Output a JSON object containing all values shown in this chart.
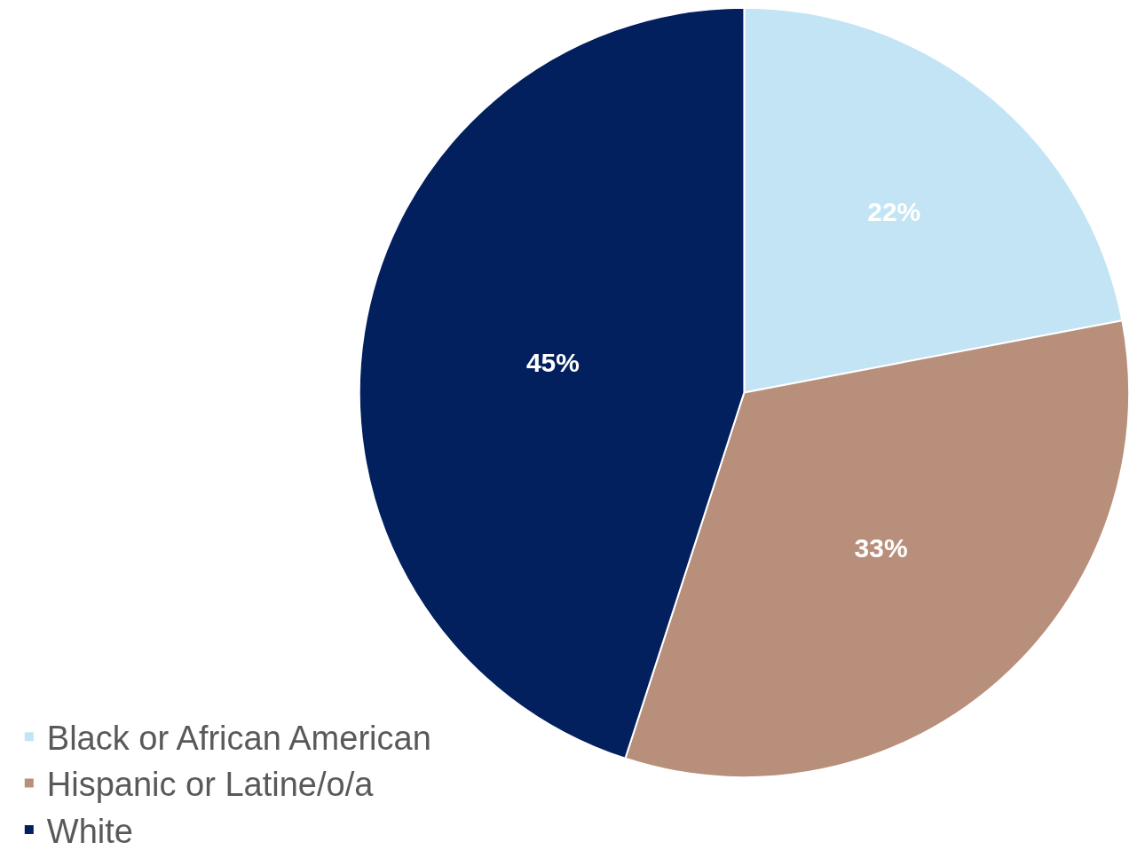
{
  "chart_data": {
    "type": "pie",
    "categories": [
      "Black or African American",
      "Hispanic or Latine/o/a",
      "White"
    ],
    "values": [
      22,
      33,
      45
    ],
    "value_labels": [
      "22%",
      "33%",
      "45%"
    ],
    "colors": [
      "#c3e4f4",
      "#b88f7b",
      "#021f5e"
    ],
    "legend": "bottom left"
  }
}
